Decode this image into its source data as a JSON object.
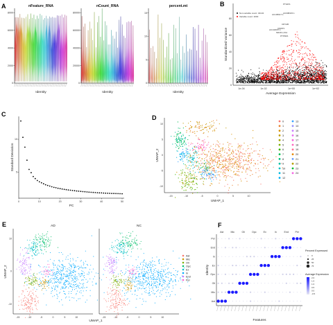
{
  "panels": {
    "a": "A",
    "b": "B",
    "c": "C",
    "d": "D",
    "e": "E",
    "f": "F"
  },
  "chart_data": [
    {
      "panel": "A",
      "type": "violin",
      "groups": [
        "nFeature_RNA",
        "nCount_RNA",
        "percent.mt"
      ],
      "titles": [
        "nFeature_RNA",
        "nCount_RNA",
        "percent.mt"
      ],
      "xlabel": "Identity",
      "yticks": [
        [
          0,
          2000,
          4000,
          6000,
          8000
        ],
        [
          0,
          20000,
          40000,
          60000,
          80000
        ],
        [
          0,
          5,
          10,
          15
        ]
      ],
      "ylim": [
        [
          0,
          8500
        ],
        [
          0,
          85000
        ],
        [
          0,
          16
        ]
      ],
      "n_violins": 34
    },
    {
      "panel": "B",
      "type": "scatter",
      "xlabel": "Average Expression",
      "ylabel": "Standardized Variance",
      "xticks": [
        "1e-04",
        "1e-02",
        "1e+00",
        "1e+02"
      ],
      "yticks": [
        0,
        20,
        40,
        60,
        80
      ],
      "legend": [
        "Non-variable count: 34134",
        "Variable count: 2000"
      ],
      "legend_colors": [
        "#000000",
        "#ff0000"
      ],
      "labeled_genes": [
        "PTGDS",
        "AC105917.1",
        "AC008415.1",
        "CRYAB",
        "CNDP1",
        "AC104667.1",
        "NR2F1-AS1",
        "PTPRZ1"
      ]
    },
    {
      "panel": "C",
      "type": "scatter",
      "title": "",
      "xlabel": "PC",
      "ylabel": "Standard Deviation",
      "xticks": [
        0,
        10,
        20,
        30,
        40,
        50
      ],
      "yticks": [
        5,
        10
      ],
      "xlim": [
        0,
        51
      ],
      "ylim": [
        1,
        13.5
      ],
      "x": [
        1,
        2,
        3,
        4,
        5,
        6,
        7,
        8,
        9,
        10,
        11,
        12,
        13,
        14,
        15,
        16,
        17,
        18,
        19,
        20,
        21,
        22,
        23,
        24,
        25,
        26,
        27,
        28,
        29,
        30,
        31,
        32,
        33,
        34,
        35,
        36,
        37,
        38,
        39,
        40,
        41,
        42,
        43,
        44,
        45,
        46,
        47,
        48,
        49,
        50
      ],
      "y": [
        12.8,
        10.3,
        8.8,
        6.8,
        5.4,
        4.9,
        4.3,
        4.0,
        3.7,
        3.5,
        3.35,
        3.2,
        3.05,
        2.95,
        2.85,
        2.75,
        2.65,
        2.6,
        2.52,
        2.46,
        2.4,
        2.35,
        2.3,
        2.26,
        2.22,
        2.18,
        2.14,
        2.1,
        2.07,
        2.04,
        2.01,
        1.98,
        1.95,
        1.92,
        1.9,
        1.88,
        1.86,
        1.84,
        1.82,
        1.8,
        1.78,
        1.76,
        1.75,
        1.74,
        1.73,
        1.72,
        1.71,
        1.7,
        1.69,
        1.68
      ]
    },
    {
      "panel": "D",
      "type": "scatter",
      "xlabel": "UMAP_1",
      "ylabel": "UMAP_2",
      "xticks": [
        -15,
        -10,
        -5,
        0,
        5,
        10
      ],
      "yticks": [
        -10,
        -5,
        0,
        5,
        10
      ],
      "legend": [
        "0",
        "1",
        "2",
        "3",
        "4",
        "5",
        "6",
        "7",
        "8",
        "9",
        "10",
        "11",
        "12",
        "13",
        "14",
        "15",
        "16",
        "17",
        "18",
        "19",
        "20",
        "21",
        "22",
        "23",
        "24"
      ]
    },
    {
      "panel": "E",
      "type": "scatter",
      "facets": [
        "AD",
        "NC"
      ],
      "xlabel": "UMAP_1",
      "ylabel": "UMAP_2",
      "xticks": [
        -15,
        -10,
        -5,
        0,
        5,
        10
      ],
      "yticks": [
        -10,
        0,
        10
      ],
      "legend": [
        "Ast",
        "Mic",
        "Oli",
        "Opc",
        "Ex",
        "In",
        "End",
        "Per"
      ]
    },
    {
      "panel": "F",
      "type": "dotplot",
      "xlabel": "Features",
      "ylabel": "Identity",
      "rows": [
        "Per",
        "End",
        "In",
        "Ex",
        "Opc",
        "Oli",
        "Mic",
        "Ast"
      ],
      "col_groups": [
        "Ast",
        "Mic",
        "Oli",
        "Opc",
        "Ex",
        "In",
        "End",
        "Per"
      ],
      "legend_pct_title": "Percent Expressed",
      "legend_pct": [
        "0",
        "25",
        "50",
        "75"
      ],
      "legend_avg_title": "Average Expression",
      "legend_avg": [
        "2.0",
        "1.5",
        "1.0",
        "0.5",
        "0.0",
        "-0.5"
      ]
    }
  ]
}
